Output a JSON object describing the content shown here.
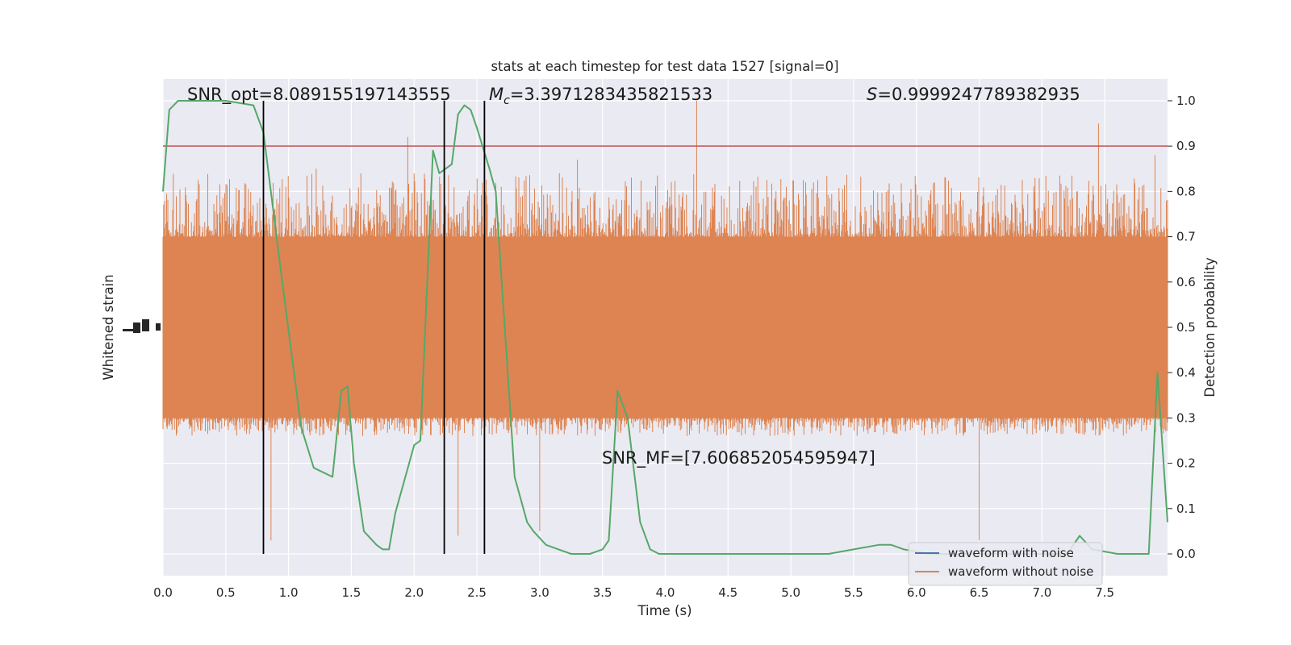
{
  "chart_data": {
    "type": "line",
    "title": "stats at each timestep for test data 1527 [signal=0]",
    "xlabel": "Time (s)",
    "ylabel_left": "Whitened strain",
    "ylabel_right": "Detection probability",
    "xlim": [
      0,
      8
    ],
    "ylim_right": [
      -0.048,
      1.048
    ],
    "x_ticks": [
      "0.0",
      "0.5",
      "1.0",
      "1.5",
      "2.0",
      "2.5",
      "3.0",
      "3.5",
      "4.0",
      "4.5",
      "5.0",
      "5.5",
      "6.0",
      "6.5",
      "7.0",
      "7.5"
    ],
    "y_ticks_right": [
      "0.0",
      "0.1",
      "0.2",
      "0.3",
      "0.4",
      "0.5",
      "0.6",
      "0.7",
      "0.8",
      "0.9",
      "1.0"
    ],
    "grid": true,
    "legend": {
      "placement": "lower right",
      "entries": [
        {
          "label": "waveform with noise",
          "color": "#4c72b0"
        },
        {
          "label": "waveform without noise",
          "color": "#dd8452"
        }
      ]
    },
    "annotations": {
      "snr_opt": "SNR_opt=8.089155197143555",
      "mc_symbol": "M",
      "mc_sub": "c",
      "mc_value": "=3.3971283435821533",
      "s_symbol": "S",
      "s_value": "=0.9999247789382935",
      "snr_mf": "SNR_MF=[7.606852054595947]"
    },
    "threshold": 0.9,
    "vertical_lines_s": [
      0.8,
      2.24,
      2.56
    ],
    "detection_probability": {
      "color": "#55a868",
      "x": [
        0,
        0.05,
        0.12,
        0.3,
        0.5,
        0.72,
        0.8,
        0.95,
        1.1,
        1.2,
        1.35,
        1.42,
        1.47,
        1.52,
        1.6,
        1.7,
        1.75,
        1.8,
        1.85,
        2.0,
        2.05,
        2.15,
        2.2,
        2.3,
        2.35,
        2.4,
        2.45,
        2.5,
        2.6,
        2.65,
        2.8,
        2.9,
        2.95,
        3.05,
        3.15,
        3.25,
        3.4,
        3.5,
        3.55,
        3.62,
        3.7,
        3.8,
        3.88,
        3.95,
        4.1,
        4.4,
        4.7,
        5.0,
        5.3,
        5.5,
        5.7,
        5.8,
        5.9,
        6.1,
        6.4,
        6.7,
        7.0,
        7.2,
        7.3,
        7.4,
        7.6,
        7.75,
        7.85,
        7.92,
        8.0
      ],
      "y": [
        0.8,
        0.98,
        1.0,
        1.0,
        1.0,
        0.99,
        0.93,
        0.6,
        0.28,
        0.19,
        0.17,
        0.36,
        0.37,
        0.2,
        0.05,
        0.02,
        0.01,
        0.01,
        0.09,
        0.24,
        0.25,
        0.89,
        0.84,
        0.86,
        0.97,
        0.99,
        0.98,
        0.94,
        0.85,
        0.8,
        0.17,
        0.07,
        0.05,
        0.02,
        0.01,
        0.0,
        0.0,
        0.01,
        0.03,
        0.36,
        0.3,
        0.07,
        0.01,
        0.0,
        0.0,
        0.0,
        0.0,
        0.0,
        0.0,
        0.01,
        0.02,
        0.02,
        0.01,
        0.0,
        0.0,
        0.0,
        0.0,
        0.0,
        0.04,
        0.01,
        0.0,
        0.0,
        0.0,
        0.4,
        0.07
      ]
    },
    "strain_band": {
      "color": "#dd8452",
      "dense_range": [
        0.3,
        0.7
      ],
      "typical_peak_range": [
        0.26,
        0.84
      ],
      "extreme_values": [
        [
          0.86,
          0.03
        ],
        [
          1.22,
          0.85
        ],
        [
          1.95,
          0.92
        ],
        [
          2.35,
          0.04
        ],
        [
          3.0,
          0.05
        ],
        [
          3.3,
          0.87
        ],
        [
          4.25,
          1.0
        ],
        [
          6.5,
          0.03
        ],
        [
          7.45,
          0.95
        ],
        [
          7.9,
          0.88
        ]
      ]
    }
  }
}
